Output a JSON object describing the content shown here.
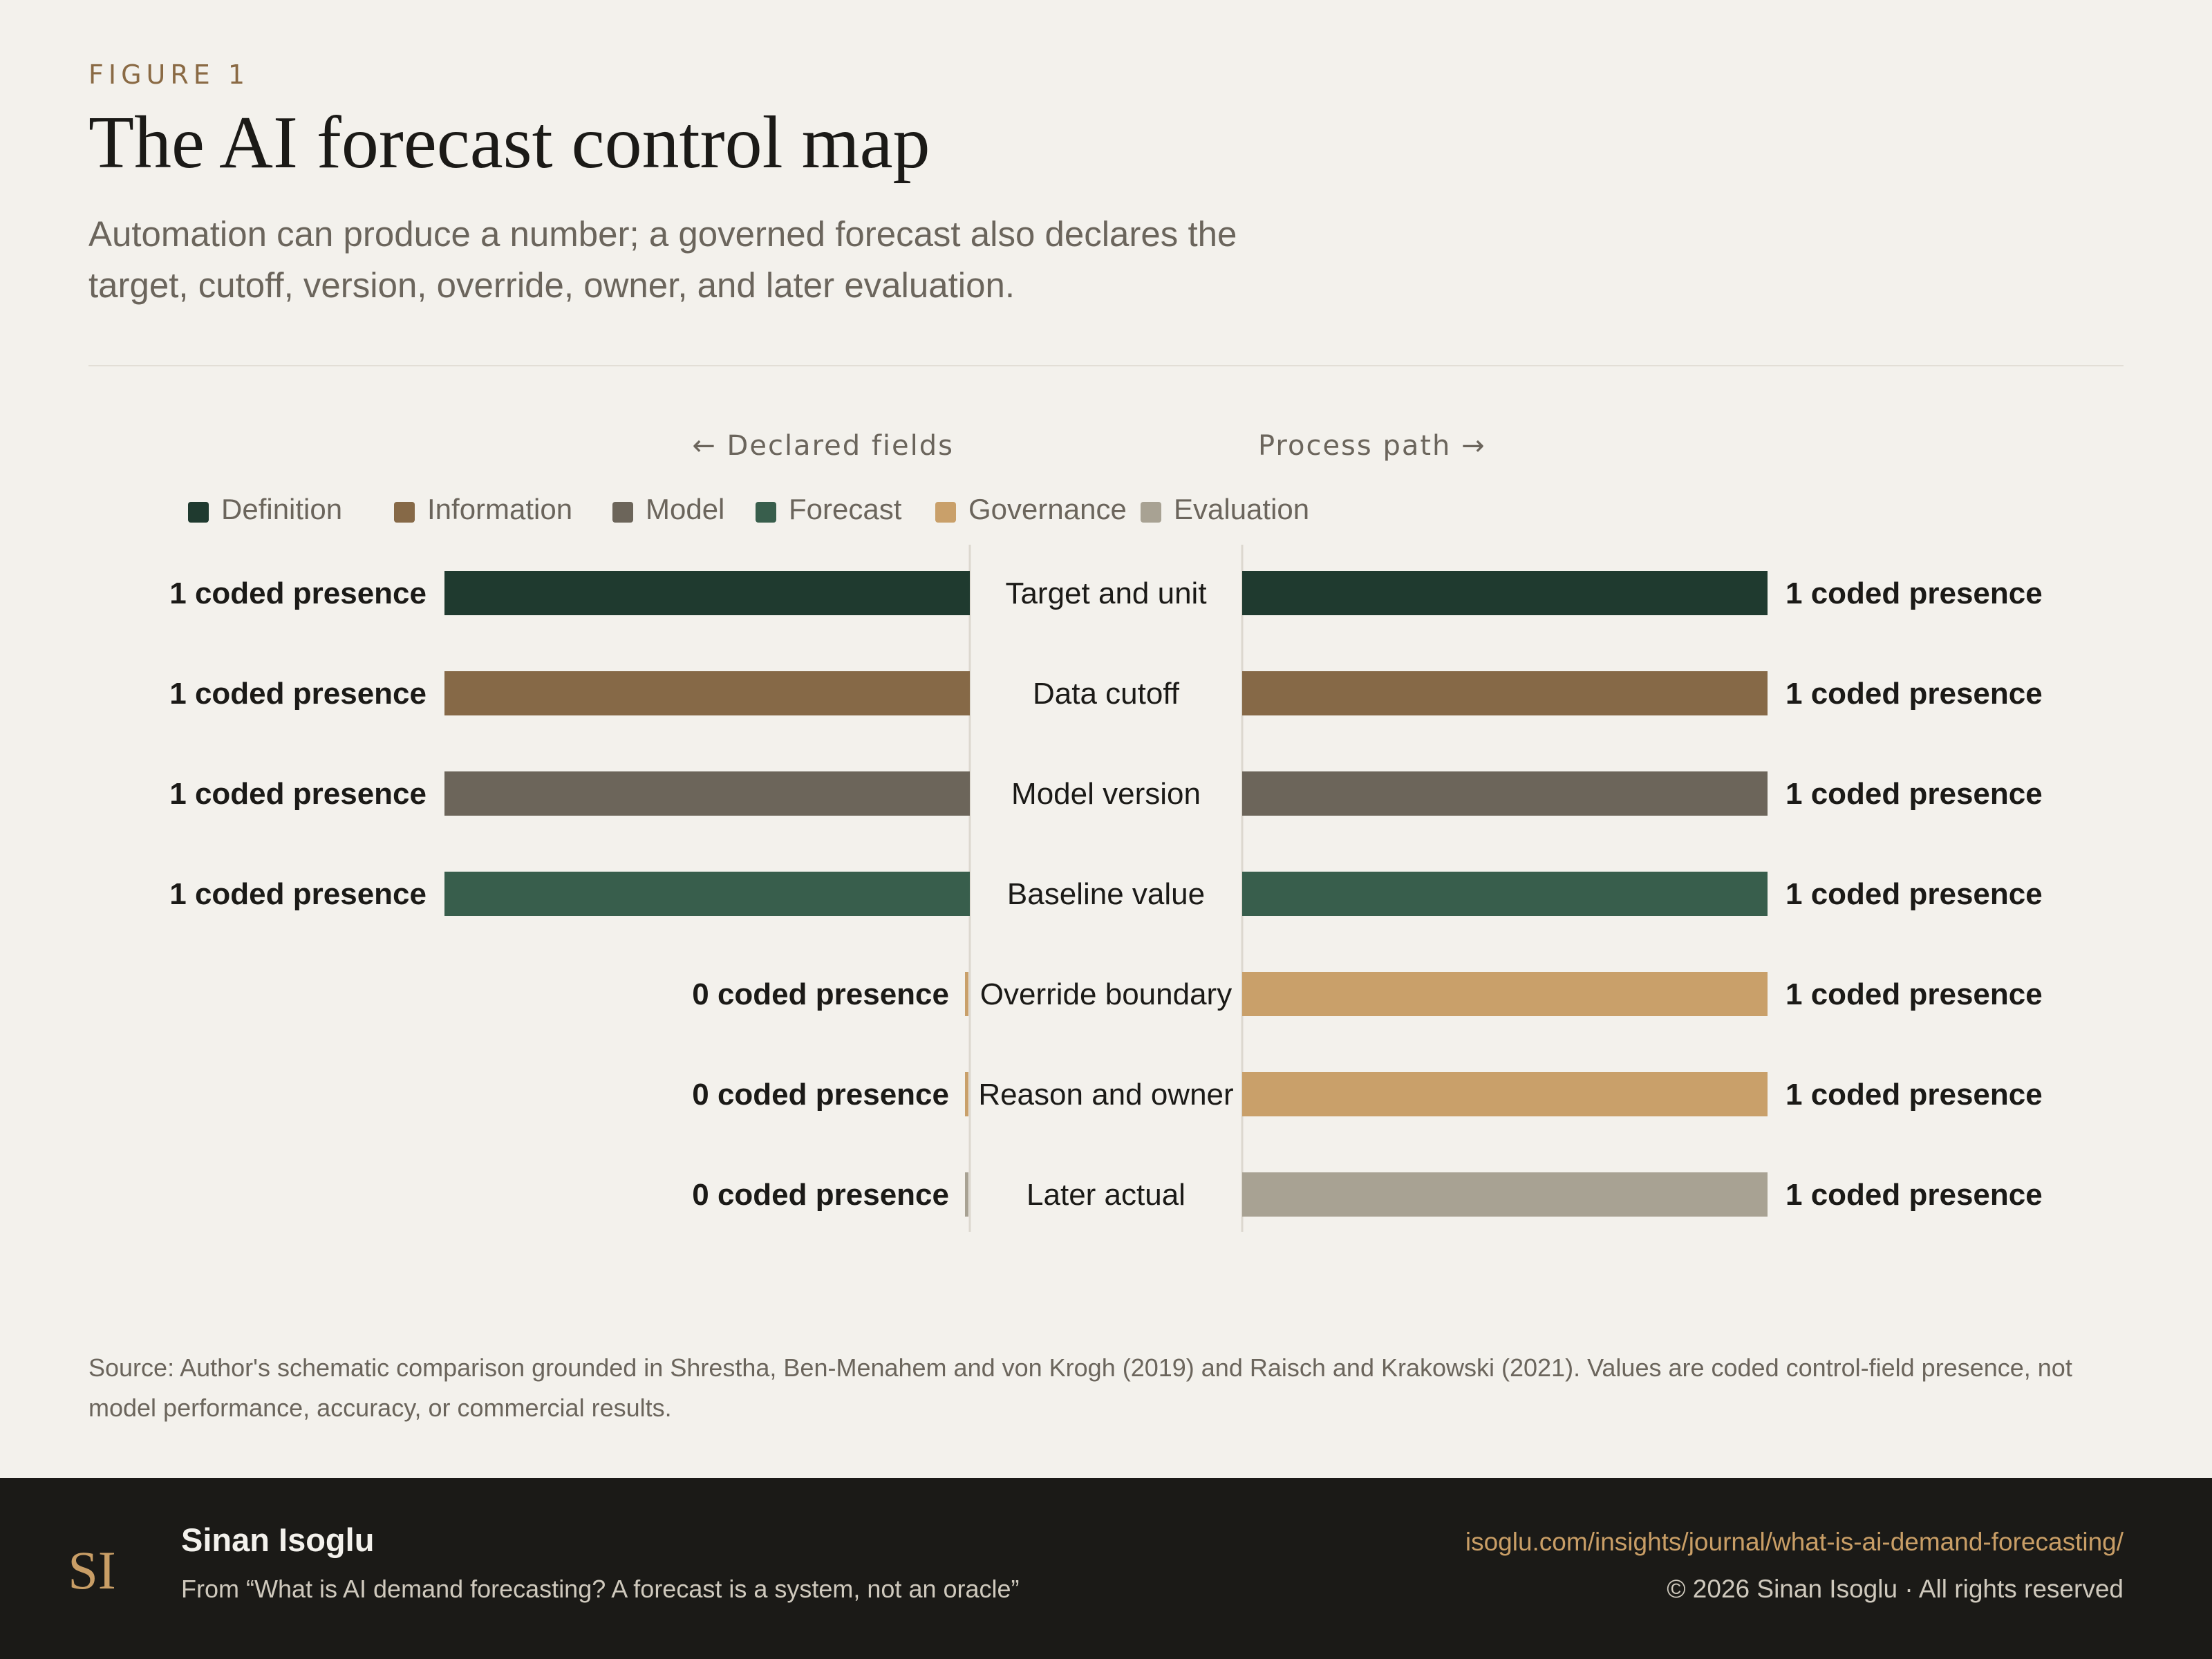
{
  "figure_label": "FIGURE 1",
  "title": "The AI forecast control map",
  "subtitle": "Automation can produce a number; a governed forecast also declares the target, cutoff, version, override, owner, and later evaluation.",
  "source_note": "Source: Author's schematic comparison grounded in Shrestha, Ben-Menahem and von Krogh (2019) and Raisch and Krakowski (2021). Values are coded control-field presence, not model performance, accuracy, or commercial results.",
  "footer": {
    "author": "Sinan Isoglu",
    "from_line": "From “What is AI demand forecasting? A forecast is a system, not an oracle”",
    "url": "isoglu.com/insights/journal/what-is-ai-demand-forecasting/",
    "copyright": "© 2026 Sinan Isoglu · All rights reserved",
    "logo_text": "SI",
    "logo_color": "#c99e66"
  },
  "chart_data": {
    "type": "bar",
    "orientation": "horizontal",
    "layout": "diverging",
    "left_header": "← Declared fields",
    "right_header": "Process path →",
    "value_suffix": " coded presence",
    "xlim": [
      0,
      1
    ],
    "legend": [
      {
        "name": "Definition",
        "color": "#1f3a2f"
      },
      {
        "name": "Information",
        "color": "#866947"
      },
      {
        "name": "Model",
        "color": "#6c655a"
      },
      {
        "name": "Forecast",
        "color": "#385e4c"
      },
      {
        "name": "Governance",
        "color": "#c9a06a"
      },
      {
        "name": "Evaluation",
        "color": "#a8a293"
      }
    ],
    "categories": [
      "Target and unit",
      "Data cutoff",
      "Model version",
      "Baseline value",
      "Override boundary",
      "Reason and owner",
      "Later actual"
    ],
    "category_groups": [
      "Definition",
      "Information",
      "Model",
      "Forecast",
      "Governance",
      "Governance",
      "Evaluation"
    ],
    "series": [
      {
        "name": "Declared fields",
        "values": [
          1,
          1,
          1,
          1,
          0,
          0,
          0
        ]
      },
      {
        "name": "Process path",
        "values": [
          1,
          1,
          1,
          1,
          1,
          1,
          1
        ]
      }
    ]
  }
}
